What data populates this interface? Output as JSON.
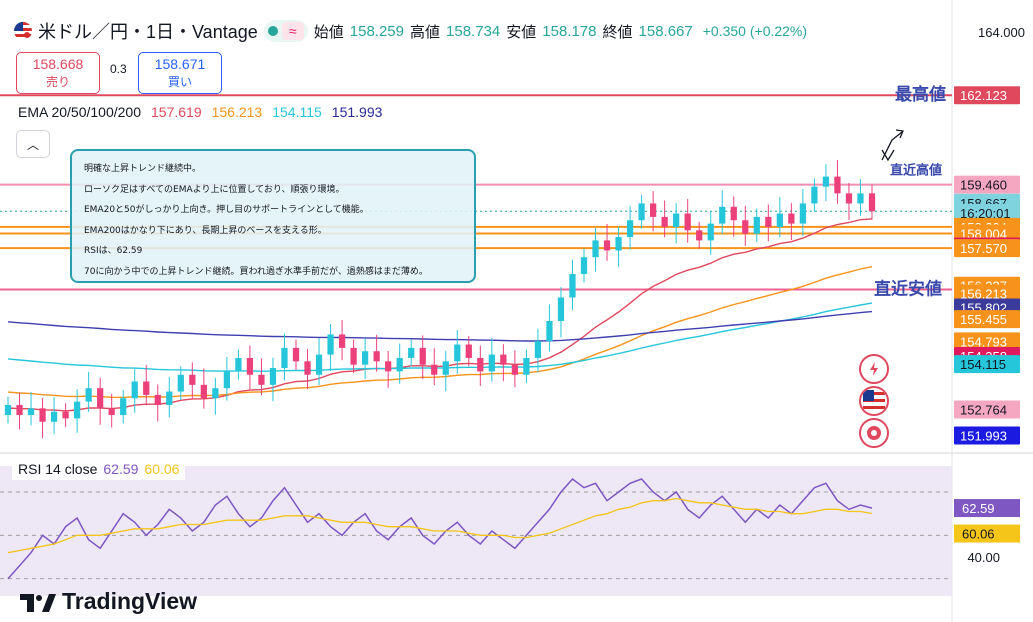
{
  "header": {
    "symbol": "米ドル／円・1日・Vantage",
    "open_label": "始値",
    "open": "158.259",
    "high_label": "高値",
    "high": "158.734",
    "low_label": "安値",
    "low": "158.178",
    "close_label": "終値",
    "close": "158.667",
    "change": "+0.350 (+0.22%)"
  },
  "trade": {
    "sell_price": "158.668",
    "sell_label": "売り",
    "spread": "0.3",
    "buy_price": "158.671",
    "buy_label": "買い"
  },
  "ema": {
    "label": "EMA 20/50/100/200",
    "v20": "157.619",
    "v50": "156.213",
    "v100": "154.115",
    "v200": "151.993",
    "colors": {
      "ema20": "#e0485e",
      "ema50": "#f7931a",
      "ema100": "#26c6da",
      "ema200": "#3f3fb0"
    }
  },
  "note_lines": [
    "明確な上昇トレンド継続中。",
    "ローソク足はすべてのEMAより上に位置しており、順張り環境。",
    "EMA20と50がしっかり上向き。押し目のサポートラインとして機能。",
    "EMA200はかなり下にあり、長期上昇のベースを支える形。",
    "RSIは、62.59",
    "70に向かう中での上昇トレンド継続。買われ過ぎ水準手前だが、過熱感はまだ薄め。"
  ],
  "rsi": {
    "label": "RSI 14 close",
    "value": "62.59",
    "ma": "60.06"
  },
  "branding": "TradingView",
  "chart_data": {
    "type": "candlestick",
    "title": "米ドル／円・1日・Vantage",
    "price_axis_top_tick": "164.000",
    "ylim": [
      151.5,
      164.6
    ],
    "annotations": [
      {
        "text": "最高値",
        "price": 162.123
      },
      {
        "text": "直近高値",
        "price": 159.46
      },
      {
        "text": "直近安値",
        "price": 156.337
      }
    ],
    "price_labels": [
      {
        "text": "162.123",
        "price": 162.123,
        "bg": "#e0485e",
        "fg": "#ffffff"
      },
      {
        "text": "159.460",
        "price": 159.46,
        "bg": "#f5a6c0",
        "fg": "#131722"
      },
      {
        "text": "158.667",
        "price": 158.92,
        "bg": "#7fd3df",
        "fg": "#131722"
      },
      {
        "text": "16:20:01",
        "price": 158.62,
        "bg": "#7fd3df",
        "fg": "#131722"
      },
      {
        "text": "158.204",
        "price": 158.204,
        "bg": "#f7931a",
        "fg": "#ffffff"
      },
      {
        "text": "158.004",
        "price": 158.004,
        "bg": "#f7931a",
        "fg": "#ffffff"
      },
      {
        "text": "157.619",
        "price": 157.619,
        "bg": "#e0185e",
        "fg": "#ffffff"
      },
      {
        "text": "157.570",
        "price": 157.57,
        "bg": "#f7931a",
        "fg": "#ffffff"
      },
      {
        "text": "156.337",
        "price": 156.45,
        "bg": "#f7931a",
        "fg": "#ffffff"
      },
      {
        "text": "156.213",
        "price": 156.213,
        "bg": "#f7931a",
        "fg": "#ffffff"
      },
      {
        "text": "155.802",
        "price": 155.802,
        "bg": "#3b3b9c",
        "fg": "#ffffff"
      },
      {
        "text": "155.455",
        "price": 155.455,
        "bg": "#f7931a",
        "fg": "#ffffff"
      },
      {
        "text": "154.793",
        "price": 154.793,
        "bg": "#f7931a",
        "fg": "#ffffff"
      },
      {
        "text": "154.358",
        "price": 154.358,
        "bg": "#e0185e",
        "fg": "#ffffff"
      },
      {
        "text": "154.115",
        "price": 154.115,
        "bg": "#26c6da",
        "fg": "#131722"
      },
      {
        "text": "152.764",
        "price": 152.764,
        "bg": "#f5a6c0",
        "fg": "#131722"
      },
      {
        "text": "151.993",
        "price": 151.993,
        "bg": "#1a1ae0",
        "fg": "#ffffff"
      }
    ],
    "horizontal_lines": [
      {
        "price": 162.123,
        "color": "#e0485e"
      },
      {
        "price": 159.46,
        "color": "#f48fb1"
      },
      {
        "price": 158.204,
        "color": "#f7931a"
      },
      {
        "price": 158.004,
        "color": "#f7931a"
      },
      {
        "price": 157.57,
        "color": "#f7931a"
      },
      {
        "price": 156.337,
        "color": "#f06292"
      }
    ],
    "closes": [
      152.9,
      152.6,
      152.8,
      152.4,
      152.7,
      152.5,
      153.0,
      153.4,
      152.8,
      152.6,
      153.1,
      153.6,
      153.2,
      152.9,
      153.3,
      153.8,
      153.5,
      153.1,
      153.4,
      153.9,
      154.3,
      153.8,
      153.5,
      154.0,
      154.6,
      154.2,
      153.8,
      154.4,
      155.0,
      154.6,
      154.1,
      154.5,
      154.2,
      153.9,
      154.3,
      154.6,
      154.1,
      153.8,
      154.2,
      154.7,
      154.3,
      153.9,
      154.4,
      154.1,
      153.8,
      154.3,
      154.8,
      155.4,
      156.1,
      156.8,
      157.3,
      157.8,
      157.5,
      157.9,
      158.4,
      158.9,
      158.5,
      158.2,
      158.6,
      158.1,
      157.8,
      158.3,
      158.8,
      158.4,
      158.0,
      158.5,
      158.2,
      158.6,
      158.3,
      158.9,
      159.4,
      159.7,
      159.2,
      158.9,
      159.2,
      158.667
    ],
    "rsi": [
      30,
      36,
      42,
      50,
      46,
      54,
      58,
      48,
      44,
      52,
      60,
      56,
      50,
      55,
      62,
      58,
      52,
      56,
      64,
      68,
      60,
      54,
      58,
      66,
      72,
      64,
      56,
      60,
      54,
      50,
      56,
      60,
      52,
      48,
      54,
      58,
      50,
      46,
      52,
      56,
      50,
      46,
      52,
      48,
      44,
      50,
      56,
      62,
      70,
      76,
      72,
      74,
      66,
      70,
      74,
      76,
      70,
      66,
      70,
      62,
      58,
      64,
      68,
      62,
      56,
      62,
      58,
      64,
      60,
      66,
      72,
      74,
      66,
      62,
      64,
      62.59
    ],
    "rsi_ma": [
      42,
      43,
      44,
      45,
      46,
      48,
      50,
      50,
      50,
      51,
      52,
      53,
      53,
      53,
      54,
      55,
      55,
      55,
      56,
      57,
      57,
      57,
      57,
      58,
      59,
      59,
      59,
      58,
      57,
      56,
      56,
      56,
      55,
      54,
      54,
      54,
      53,
      52,
      52,
      52,
      51,
      50,
      50,
      50,
      49,
      49,
      50,
      51,
      53,
      55,
      57,
      59,
      60,
      62,
      63,
      65,
      66,
      66,
      67,
      66,
      65,
      65,
      64,
      63,
      62,
      62,
      61,
      61,
      60,
      60,
      61,
      62,
      62,
      61,
      61,
      60.06
    ],
    "rsi_levels": [
      70,
      50,
      30
    ],
    "rsi_axis_tick": "40.00",
    "rsi_ylim": [
      22,
      82
    ]
  }
}
